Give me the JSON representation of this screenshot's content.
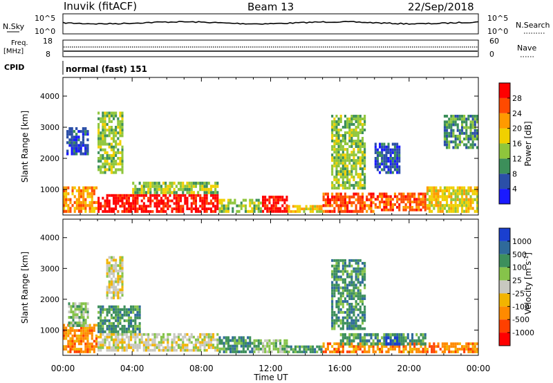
{
  "header": {
    "station": "Inuvik (fitACF)",
    "beam": "Beam 13",
    "date": "22/Sep/2018"
  },
  "top_panels": {
    "nsky_label": "N.Sky",
    "nsky_ticks": [
      "10^5",
      "10^0"
    ],
    "nsearch_label": "N.Search",
    "nsearch_ticks": [
      "10^5",
      "10^0"
    ],
    "freq_label": "Freq.",
    "freq_unit": "[MHz]",
    "freq_ticks": [
      "18",
      "8"
    ],
    "nave_label": "Nave",
    "nave_ticks": [
      "60",
      "0"
    ],
    "cpid_label": "CPID",
    "cpid_text": "normal (fast) 151"
  },
  "x_axis": {
    "label": "Time UT",
    "ticks": [
      "00:00",
      "04:00",
      "08:00",
      "12:00",
      "16:00",
      "20:00",
      "00:00"
    ]
  },
  "colorbars": {
    "power": {
      "label": "Power [dB]",
      "ticks": [
        "4",
        "8",
        "12",
        "16",
        "20",
        "24",
        "28"
      ],
      "colors": [
        "#1a1aff",
        "#2b4fa8",
        "#3c8f5a",
        "#8fc63c",
        "#f0d000",
        "#ff9a00",
        "#ff4a00",
        "#ff0000"
      ]
    },
    "velocity": {
      "label": "Velocity [m s",
      "label_sup": "-1",
      "label_end": "]",
      "ticks": [
        "1000",
        "500",
        "100",
        "25",
        "-25",
        "-100",
        "-500",
        "-1000"
      ],
      "colors": [
        "#1a3fcf",
        "#2f6a9a",
        "#3d8f5c",
        "#86c34a",
        "#c8c8c0",
        "#f2b400",
        "#ff8a00",
        "#ff4000",
        "#ff0000"
      ]
    }
  },
  "chart_data": [
    {
      "type": "heatmap",
      "title": "Power",
      "xlabel": "Time UT",
      "ylabel": "Slant Range [km]",
      "x_range_hours": [
        0,
        24
      ],
      "ylim": [
        180,
        4600
      ],
      "y_ticks": [
        1000,
        2000,
        3000,
        4000
      ],
      "colorbar": "Power [dB]",
      "regions": [
        {
          "t0": 0.0,
          "t1": 2.0,
          "r0": 250,
          "r1": 1100,
          "level": 5
        },
        {
          "t0": 2.0,
          "t1": 9.0,
          "r0": 250,
          "r1": 850,
          "level": 7
        },
        {
          "t0": 4.0,
          "t1": 9.0,
          "r0": 850,
          "r1": 1250,
          "level": 3
        },
        {
          "t0": 9.0,
          "t1": 11.5,
          "r0": 250,
          "r1": 700,
          "level": 3
        },
        {
          "t0": 11.5,
          "t1": 13.0,
          "r0": 250,
          "r1": 800,
          "level": 7
        },
        {
          "t0": 13.0,
          "t1": 15.0,
          "r0": 250,
          "r1": 500,
          "level": 4
        },
        {
          "t0": 15.0,
          "t1": 18.0,
          "r0": 250,
          "r1": 900,
          "level": 6
        },
        {
          "t0": 18.0,
          "t1": 21.0,
          "r0": 300,
          "r1": 900,
          "level": 6
        },
        {
          "t0": 21.0,
          "t1": 24.0,
          "r0": 250,
          "r1": 1100,
          "level": 4
        },
        {
          "t0": 0.2,
          "t1": 1.5,
          "r0": 2100,
          "r1": 3000,
          "level": 1
        },
        {
          "t0": 2.0,
          "t1": 3.5,
          "r0": 1500,
          "r1": 3500,
          "level": 3
        },
        {
          "t0": 15.5,
          "t1": 17.5,
          "r0": 1000,
          "r1": 3400,
          "level": 3
        },
        {
          "t0": 18.0,
          "t1": 19.5,
          "r0": 1500,
          "r1": 2500,
          "level": 1
        },
        {
          "t0": 22.0,
          "t1": 24.0,
          "r0": 2300,
          "r1": 3400,
          "level": 2
        }
      ]
    },
    {
      "type": "heatmap",
      "title": "Velocity",
      "xlabel": "Time UT",
      "ylabel": "Slant Range [km]",
      "x_range_hours": [
        0,
        24
      ],
      "ylim": [
        180,
        4600
      ],
      "y_ticks": [
        1000,
        2000,
        3000,
        4000
      ],
      "colorbar": "Velocity [m s-1]",
      "regions": [
        {
          "t0": 0.0,
          "t1": 2.0,
          "r0": 250,
          "r1": 1200,
          "level": 6
        },
        {
          "t0": 0.3,
          "t1": 1.5,
          "r0": 1100,
          "r1": 1900,
          "level": 3
        },
        {
          "t0": 2.0,
          "t1": 9.0,
          "r0": 300,
          "r1": 900,
          "level": 4
        },
        {
          "t0": 2.0,
          "t1": 4.5,
          "r0": 900,
          "r1": 1800,
          "level": 2
        },
        {
          "t0": 9.0,
          "t1": 11.0,
          "r0": 250,
          "r1": 800,
          "level": 2
        },
        {
          "t0": 11.0,
          "t1": 13.0,
          "r0": 250,
          "r1": 700,
          "level": 3
        },
        {
          "t0": 13.0,
          "t1": 15.0,
          "r0": 250,
          "r1": 500,
          "level": 2
        },
        {
          "t0": 15.0,
          "t1": 24.0,
          "r0": 250,
          "r1": 600,
          "level": 6
        },
        {
          "t0": 16.0,
          "t1": 21.0,
          "r0": 500,
          "r1": 900,
          "level": 2
        },
        {
          "t0": 18.5,
          "t1": 19.5,
          "r0": 500,
          "r1": 800,
          "level": 0
        },
        {
          "t0": 2.5,
          "t1": 3.5,
          "r0": 2000,
          "r1": 3400,
          "level": 4
        },
        {
          "t0": 15.5,
          "t1": 17.5,
          "r0": 1000,
          "r1": 3300,
          "level": 2
        }
      ]
    }
  ]
}
